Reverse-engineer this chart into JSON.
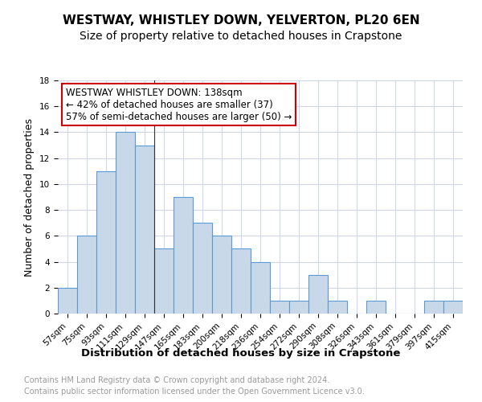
{
  "title": "WESTWAY, WHISTLEY DOWN, YELVERTON, PL20 6EN",
  "subtitle": "Size of property relative to detached houses in Crapstone",
  "xlabel": "Distribution of detached houses by size in Crapstone",
  "ylabel": "Number of detached properties",
  "categories": [
    "57sqm",
    "75sqm",
    "93sqm",
    "111sqm",
    "129sqm",
    "147sqm",
    "165sqm",
    "183sqm",
    "200sqm",
    "218sqm",
    "236sqm",
    "254sqm",
    "272sqm",
    "290sqm",
    "308sqm",
    "326sqm",
    "343sqm",
    "361sqm",
    "379sqm",
    "397sqm",
    "415sqm"
  ],
  "values": [
    2,
    6,
    11,
    14,
    13,
    5,
    9,
    7,
    6,
    5,
    4,
    1,
    1,
    3,
    1,
    0,
    1,
    0,
    0,
    1,
    1
  ],
  "bar_color": "#c8d8e8",
  "bar_edge_color": "#5b9bd5",
  "background_color": "#ffffff",
  "grid_color": "#d0d8e8",
  "annotation_line1": "WESTWAY WHISTLEY DOWN: 138sqm",
  "annotation_line2": "← 42% of detached houses are smaller (37)",
  "annotation_line3": "57% of semi-detached houses are larger (50) →",
  "annotation_box_color": "#ffffff",
  "annotation_box_edge_color": "#cc0000",
  "footer_line1": "Contains HM Land Registry data © Crown copyright and database right 2024.",
  "footer_line2": "Contains public sector information licensed under the Open Government Licence v3.0.",
  "ylim": [
    0,
    18
  ],
  "yticks": [
    0,
    2,
    4,
    6,
    8,
    10,
    12,
    14,
    16,
    18
  ],
  "title_fontsize": 11,
  "subtitle_fontsize": 10,
  "ylabel_fontsize": 9,
  "xlabel_fontsize": 9.5,
  "tick_fontsize": 7.5,
  "annotation_fontsize": 8.5,
  "footer_fontsize": 7
}
